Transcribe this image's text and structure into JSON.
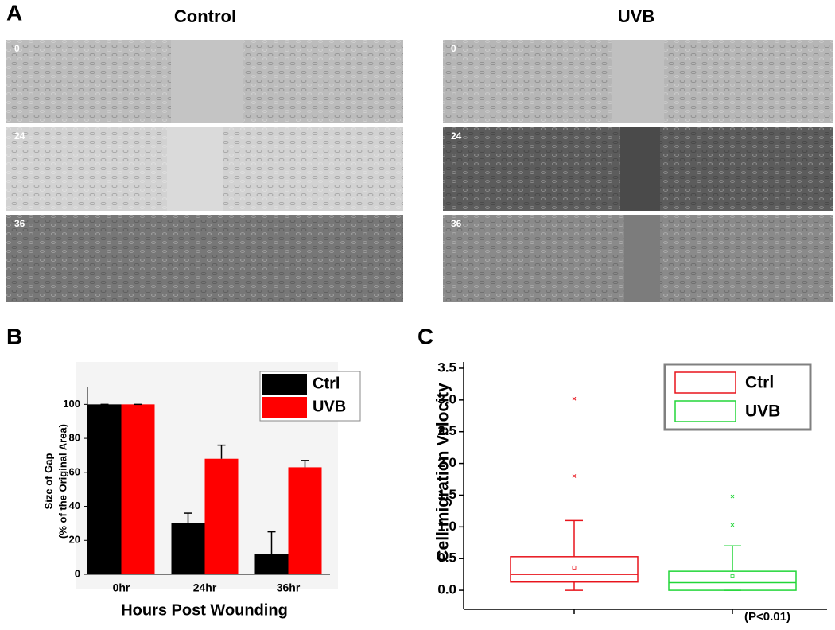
{
  "panel_a": {
    "label": "A",
    "columns": [
      {
        "title": "Control",
        "rows": [
          "0",
          "24",
          "36"
        ]
      },
      {
        "title": "UVB",
        "rows": [
          "0",
          "24",
          "36"
        ]
      }
    ]
  },
  "chart_data": [
    {
      "type": "bar",
      "panel_label": "B",
      "categories": [
        "0hr",
        "24hr",
        "36hr"
      ],
      "series": [
        {
          "name": "Ctrl",
          "color": "#000000",
          "values": [
            100,
            30,
            12
          ],
          "errors": [
            0,
            6,
            13
          ]
        },
        {
          "name": "UVB",
          "color": "#ff0000",
          "values": [
            100,
            68,
            63
          ],
          "errors": [
            0,
            8,
            4
          ]
        }
      ],
      "ylim": [
        0,
        110
      ],
      "yticks": [
        0,
        20,
        40,
        60,
        80,
        100
      ],
      "xlabel": "Hours Post Wounding",
      "ylabel": [
        "Size of Gap",
        "(% of the Original Area)"
      ]
    },
    {
      "type": "box",
      "panel_label": "C",
      "series": [
        {
          "name": "Ctrl",
          "color": "#e8141c",
          "whislo": 0,
          "q1": 0.13,
          "median": 0.25,
          "q3": 0.53,
          "whishi": 1.1,
          "mean": 0.36,
          "fliers": [
            1.8,
            3.02
          ]
        },
        {
          "name": "UVB",
          "color": "#22d638",
          "whislo": 0,
          "q1": 0,
          "median": 0.12,
          "q3": 0.3,
          "whishi": 0.7,
          "mean": 0.22,
          "fliers": [
            1.03,
            1.48
          ]
        }
      ],
      "ylim": [
        -0.3,
        3.6
      ],
      "yticks": [
        {
          "value": 0,
          "label": "0.0"
        },
        0.5,
        {
          "value": 1,
          "label": "1.0"
        },
        1.5,
        {
          "value": 2,
          "label": "2.0"
        },
        2.5,
        {
          "value": 3,
          "label": "3.0"
        },
        3.5
      ],
      "ylabel": "Cell migration Velocity",
      "annotation": "(P<0.01)"
    }
  ]
}
